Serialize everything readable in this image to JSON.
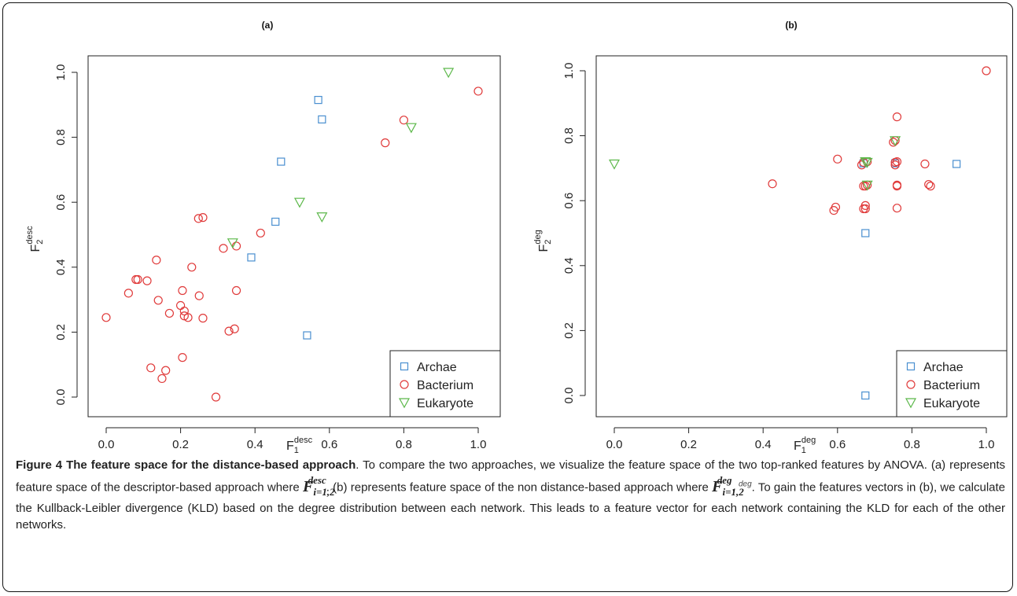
{
  "chart_data": [
    {
      "type": "scatter",
      "panel_label": "(a)",
      "xlabel_base": "F",
      "xlabel_sub": "1",
      "xlabel_sup": "desc",
      "ylabel_base": "F",
      "ylabel_sub": "2",
      "ylabel_sup": "desc",
      "xlim": [
        0.0,
        1.0
      ],
      "ylim": [
        0.0,
        1.0
      ],
      "xticks": [
        "0.0",
        "0.2",
        "0.4",
        "0.6",
        "0.8",
        "1.0"
      ],
      "yticks": [
        "0.0",
        "0.2",
        "0.4",
        "0.6",
        "0.8",
        "1.0"
      ],
      "legend_position": "bottom-right",
      "series": [
        {
          "name": "Archae",
          "color": "#4a8fd0",
          "marker": "square",
          "points": [
            [
              0.57,
              0.915
            ],
            [
              0.58,
              0.855
            ],
            [
              0.47,
              0.725
            ],
            [
              0.455,
              0.54
            ],
            [
              0.39,
              0.43
            ],
            [
              0.54,
              0.19
            ]
          ]
        },
        {
          "name": "Bacterium",
          "color": "#e03a3a",
          "marker": "circle",
          "points": [
            [
              1.0,
              0.942
            ],
            [
              0.8,
              0.853
            ],
            [
              0.75,
              0.783
            ],
            [
              0.415,
              0.505
            ],
            [
              0.248,
              0.55
            ],
            [
              0.26,
              0.553
            ],
            [
              0.315,
              0.458
            ],
            [
              0.35,
              0.465
            ],
            [
              0.135,
              0.422
            ],
            [
              0.23,
              0.4
            ],
            [
              0.08,
              0.362
            ],
            [
              0.085,
              0.362
            ],
            [
              0.11,
              0.358
            ],
            [
              0.06,
              0.32
            ],
            [
              0.205,
              0.328
            ],
            [
              0.35,
              0.328
            ],
            [
              0.25,
              0.312
            ],
            [
              0.14,
              0.298
            ],
            [
              0.2,
              0.282
            ],
            [
              0.21,
              0.265
            ],
            [
              0.21,
              0.25
            ],
            [
              0.17,
              0.258
            ],
            [
              0.22,
              0.245
            ],
            [
              0.26,
              0.243
            ],
            [
              0.0,
              0.245
            ],
            [
              0.33,
              0.203
            ],
            [
              0.345,
              0.21
            ],
            [
              0.205,
              0.122
            ],
            [
              0.12,
              0.09
            ],
            [
              0.16,
              0.082
            ],
            [
              0.15,
              0.057
            ],
            [
              0.295,
              0.0
            ]
          ]
        },
        {
          "name": "Eukaryote",
          "color": "#5cb84a",
          "marker": "triangle-down",
          "points": [
            [
              0.92,
              1.0
            ],
            [
              0.82,
              0.83
            ],
            [
              0.52,
              0.6
            ],
            [
              0.58,
              0.555
            ],
            [
              0.34,
              0.475
            ]
          ]
        }
      ]
    },
    {
      "type": "scatter",
      "panel_label": "(b)",
      "xlabel_base": "F",
      "xlabel_sub": "1",
      "xlabel_sup": "deg",
      "ylabel_base": "F",
      "ylabel_sub": "2",
      "ylabel_sup": "deg",
      "xlim": [
        0.0,
        1.0
      ],
      "ylim": [
        0.0,
        1.0
      ],
      "xticks": [
        "0.0",
        "0.2",
        "0.4",
        "0.6",
        "0.8",
        "1.0"
      ],
      "yticks": [
        "0.0",
        "0.2",
        "0.4",
        "0.6",
        "0.8",
        "1.0"
      ],
      "legend_position": "bottom-right",
      "series": [
        {
          "name": "Archae",
          "color": "#4a8fd0",
          "marker": "square",
          "points": [
            [
              0.92,
              0.713
            ],
            [
              0.755,
              0.715
            ],
            [
              0.67,
              0.715
            ],
            [
              0.675,
              0.5
            ],
            [
              0.675,
              0.0
            ]
          ]
        },
        {
          "name": "Bacterium",
          "color": "#e03a3a",
          "marker": "circle",
          "points": [
            [
              1.0,
              1.0
            ],
            [
              0.76,
              0.858
            ],
            [
              0.755,
              0.785
            ],
            [
              0.75,
              0.78
            ],
            [
              0.6,
              0.728
            ],
            [
              0.67,
              0.718
            ],
            [
              0.68,
              0.72
            ],
            [
              0.665,
              0.71
            ],
            [
              0.755,
              0.718
            ],
            [
              0.76,
              0.72
            ],
            [
              0.755,
              0.71
            ],
            [
              0.835,
              0.713
            ],
            [
              0.425,
              0.652
            ],
            [
              0.67,
              0.645
            ],
            [
              0.675,
              0.645
            ],
            [
              0.68,
              0.648
            ],
            [
              0.76,
              0.645
            ],
            [
              0.76,
              0.648
            ],
            [
              0.845,
              0.65
            ],
            [
              0.85,
              0.645
            ],
            [
              0.595,
              0.58
            ],
            [
              0.59,
              0.57
            ],
            [
              0.675,
              0.585
            ],
            [
              0.67,
              0.575
            ],
            [
              0.675,
              0.575
            ],
            [
              0.76,
              0.577
            ]
          ]
        },
        {
          "name": "Eukaryote",
          "color": "#5cb84a",
          "marker": "triangle-down",
          "points": [
            [
              0.0,
              0.713
            ],
            [
              0.675,
              0.72
            ],
            [
              0.68,
              0.718
            ],
            [
              0.755,
              0.785
            ],
            [
              0.68,
              0.648
            ]
          ]
        }
      ]
    }
  ],
  "caption": {
    "title": "Figure 4 The feature space for the distance-based approach",
    "seg1": ". To compare the two approaches, we visualize the feature space of the two top-ranked features by ANOVA. (a) represents feature space of the descriptor-based approach where ",
    "math1_base": "F",
    "math1_sup": "desc",
    "math1_sub": "i=1,2",
    "seg2": ". (b) represents feature space of the non distance-based approach where ",
    "math2_base": "F",
    "math2_sup": "deg",
    "math2_sub": "i=1,2",
    "seg2b": ". ",
    "seg2c": "deg",
    "seg3": ". To gain the features vectors in (b), we calculate the Kullback-Leibler divergence (KLD) based on the degree distribution between each network. This leads to a feature vector for each network containing the KLD for each of the other networks."
  }
}
